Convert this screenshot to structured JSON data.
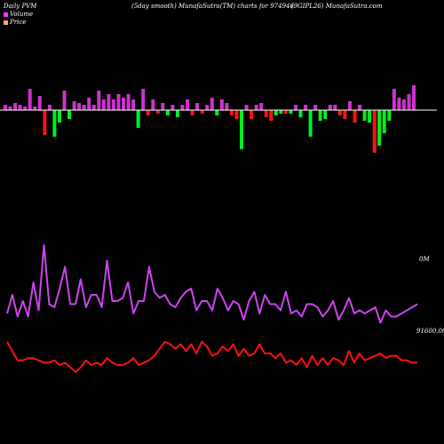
{
  "header": {
    "left": "Daily PVM",
    "center": "(5day smooth) MunafaSutra(TM) charts for 974946",
    "right": "(9GIPL26) MunafaSutra.com"
  },
  "legend": [
    {
      "label": "Volume",
      "color": "#ff33ff"
    },
    {
      "label": "Price",
      "color": "#ffa07a"
    }
  ],
  "colors": {
    "background": "#000000",
    "up_bar": "#cc33cc",
    "down_bar": "#00ee22",
    "red_bar": "#ff1111",
    "baseline": "#ffffff",
    "volume_line": "#cc44ee",
    "price_line": "#ff1111"
  },
  "chart_data": [
    {
      "type": "bar",
      "name": "volume-bars",
      "values": [
        {
          "v": 6,
          "c": "up"
        },
        {
          "v": 4,
          "c": "up"
        },
        {
          "v": 8,
          "c": "up"
        },
        {
          "v": 6,
          "c": "up"
        },
        {
          "v": 4,
          "c": "up"
        },
        {
          "v": 24,
          "c": "up"
        },
        {
          "v": 4,
          "c": "up"
        },
        {
          "v": 16,
          "c": "up"
        },
        {
          "v": -28,
          "c": "red"
        },
        {
          "v": 6,
          "c": "up"
        },
        {
          "v": -30,
          "c": "down"
        },
        {
          "v": -14,
          "c": "down"
        },
        {
          "v": 22,
          "c": "up"
        },
        {
          "v": -10,
          "c": "down"
        },
        {
          "v": 10,
          "c": "up"
        },
        {
          "v": 8,
          "c": "up"
        },
        {
          "v": 6,
          "c": "up"
        },
        {
          "v": 14,
          "c": "up"
        },
        {
          "v": 6,
          "c": "up"
        },
        {
          "v": 22,
          "c": "up"
        },
        {
          "v": 12,
          "c": "up"
        },
        {
          "v": 18,
          "c": "up"
        },
        {
          "v": 12,
          "c": "up"
        },
        {
          "v": 18,
          "c": "up"
        },
        {
          "v": 14,
          "c": "up"
        },
        {
          "v": 18,
          "c": "up"
        },
        {
          "v": 12,
          "c": "up"
        },
        {
          "v": -20,
          "c": "down"
        },
        {
          "v": 24,
          "c": "up"
        },
        {
          "v": -6,
          "c": "red"
        },
        {
          "v": 12,
          "c": "up"
        },
        {
          "v": -4,
          "c": "red"
        },
        {
          "v": 8,
          "c": "up"
        },
        {
          "v": -6,
          "c": "down"
        },
        {
          "v": 6,
          "c": "up"
        },
        {
          "v": -8,
          "c": "down"
        },
        {
          "v": 6,
          "c": "up"
        },
        {
          "v": 12,
          "c": "up"
        },
        {
          "v": -6,
          "c": "red"
        },
        {
          "v": 8,
          "c": "up"
        },
        {
          "v": -4,
          "c": "red"
        },
        {
          "v": 6,
          "c": "up"
        },
        {
          "v": 14,
          "c": "up"
        },
        {
          "v": -6,
          "c": "down"
        },
        {
          "v": 12,
          "c": "up"
        },
        {
          "v": 8,
          "c": "up"
        },
        {
          "v": -6,
          "c": "red"
        },
        {
          "v": -10,
          "c": "red"
        },
        {
          "v": -44,
          "c": "down"
        },
        {
          "v": 6,
          "c": "up"
        },
        {
          "v": -10,
          "c": "red"
        },
        {
          "v": 6,
          "c": "up"
        },
        {
          "v": 8,
          "c": "up"
        },
        {
          "v": -8,
          "c": "red"
        },
        {
          "v": -12,
          "c": "red"
        },
        {
          "v": -6,
          "c": "down"
        },
        {
          "v": -4,
          "c": "down"
        },
        {
          "v": -4,
          "c": "red"
        },
        {
          "v": -4,
          "c": "down"
        },
        {
          "v": 6,
          "c": "up"
        },
        {
          "v": -8,
          "c": "down"
        },
        {
          "v": 6,
          "c": "up"
        },
        {
          "v": -30,
          "c": "down"
        },
        {
          "v": 6,
          "c": "up"
        },
        {
          "v": -12,
          "c": "down"
        },
        {
          "v": -10,
          "c": "down"
        },
        {
          "v": 6,
          "c": "up"
        },
        {
          "v": 6,
          "c": "up"
        },
        {
          "v": -6,
          "c": "red"
        },
        {
          "v": -10,
          "c": "red"
        },
        {
          "v": 10,
          "c": "up"
        },
        {
          "v": -14,
          "c": "red"
        },
        {
          "v": 6,
          "c": "up"
        },
        {
          "v": -12,
          "c": "down"
        },
        {
          "v": -14,
          "c": "down"
        },
        {
          "v": -48,
          "c": "red"
        },
        {
          "v": -40,
          "c": "down"
        },
        {
          "v": -26,
          "c": "down"
        },
        {
          "v": -12,
          "c": "down"
        },
        {
          "v": 24,
          "c": "up"
        },
        {
          "v": 14,
          "c": "up"
        },
        {
          "v": 12,
          "c": "up"
        },
        {
          "v": 18,
          "c": "up"
        },
        {
          "v": 28,
          "c": "up"
        }
      ],
      "ylim": [
        -50,
        30
      ]
    },
    {
      "type": "line",
      "name": "volume-line",
      "x": [
        0,
        1,
        2,
        3,
        4,
        5,
        6,
        7,
        8,
        9,
        10,
        11,
        12,
        13,
        14,
        15,
        16,
        17,
        18,
        19,
        20,
        21,
        22,
        23,
        24,
        25,
        26,
        27,
        28,
        29,
        30,
        31,
        32,
        33,
        34,
        35,
        36,
        37,
        38,
        39,
        40,
        41,
        42,
        43,
        44,
        45,
        46,
        47,
        48,
        49,
        50,
        51,
        52,
        53,
        54,
        55,
        56,
        57,
        58,
        59,
        60,
        61,
        62,
        63,
        64,
        65,
        66,
        67,
        68,
        69,
        70,
        71,
        72,
        73,
        74,
        75,
        76,
        77,
        78
      ],
      "y": [
        28,
        40,
        26,
        36,
        26,
        48,
        30,
        72,
        34,
        32,
        44,
        58,
        34,
        34,
        50,
        32,
        40,
        40,
        32,
        62,
        36,
        36,
        38,
        48,
        28,
        36,
        36,
        58,
        42,
        38,
        40,
        34,
        32,
        38,
        42,
        44,
        30,
        36,
        36,
        30,
        44,
        38,
        30,
        36,
        34,
        24,
        36,
        42,
        28,
        40,
        34,
        34,
        30,
        42,
        28,
        30,
        26,
        34,
        34,
        32,
        26,
        30,
        36,
        24,
        30,
        38,
        28,
        30,
        28,
        30,
        32,
        22,
        30,
        26,
        26,
        28,
        30,
        32,
        34
      ]
    },
    {
      "type": "line",
      "name": "price-line",
      "x": [
        0,
        1,
        2,
        3,
        4,
        5,
        6,
        7,
        8,
        9,
        10,
        11,
        12,
        13,
        14,
        15,
        16,
        17,
        18,
        19,
        20,
        21,
        22,
        23,
        24,
        25,
        26,
        27,
        28,
        29,
        30,
        31,
        32,
        33,
        34,
        35,
        36,
        37,
        38,
        39,
        40,
        41,
        42,
        43,
        44,
        45,
        46,
        47,
        48,
        49,
        50,
        51,
        52,
        53,
        54,
        55,
        56,
        57,
        58,
        59,
        60,
        61,
        62,
        63,
        64,
        65,
        66,
        67,
        68,
        69,
        70,
        71,
        72,
        73,
        74,
        75,
        76,
        77,
        78
      ],
      "y": [
        30,
        22,
        14,
        14,
        16,
        16,
        14,
        12,
        12,
        14,
        10,
        12,
        8,
        4,
        8,
        14,
        10,
        12,
        10,
        16,
        12,
        10,
        10,
        12,
        16,
        10,
        12,
        14,
        18,
        24,
        30,
        28,
        24,
        28,
        22,
        28,
        20,
        30,
        26,
        18,
        20,
        26,
        22,
        28,
        18,
        24,
        18,
        20,
        28,
        20,
        20,
        16,
        20,
        12,
        14,
        10,
        16,
        8,
        18,
        10,
        16,
        10,
        16,
        14,
        10,
        22,
        12,
        20,
        14,
        16,
        18,
        20,
        16,
        18,
        18,
        14,
        14,
        12,
        12
      ]
    }
  ],
  "axis_labels": {
    "volume_right": "0M",
    "price_right": "91600.00"
  }
}
